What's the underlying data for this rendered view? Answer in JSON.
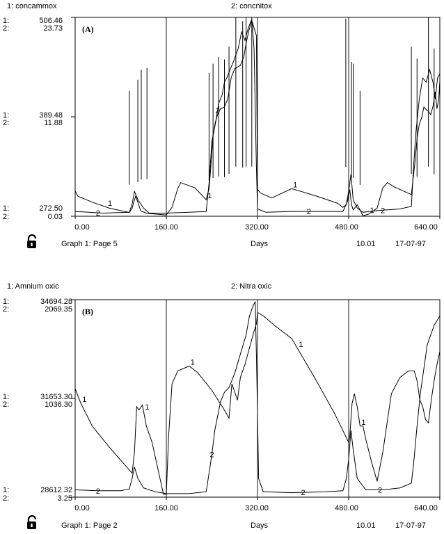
{
  "chart_data": [
    {
      "panel": "(A)",
      "type": "line",
      "series": [
        {
          "number": "1",
          "name": "concammox"
        },
        {
          "number": "2",
          "name": "concnitox"
        }
      ],
      "y1_ticks": [
        "506.46",
        "389.48",
        "272.50"
      ],
      "y2_ticks": [
        "23.73",
        "11.88",
        "0.03"
      ],
      "ylim_1": [
        272.5,
        506.46
      ],
      "ylim_2": [
        0.03,
        23.73
      ],
      "x_ticks": [
        "0.00",
        "160.00",
        "320.00",
        "480.00",
        "640.00"
      ],
      "xlim": [
        0,
        640
      ],
      "xlabel": "Days",
      "footer_left": "Graph 1: Page 5",
      "footer_time": "10.01",
      "footer_date": "17-07-97",
      "series1_points": [
        [
          0,
          302
        ],
        [
          5,
          296
        ],
        [
          30,
          289
        ],
        [
          60,
          282
        ],
        [
          95,
          277
        ],
        [
          100,
          282
        ],
        [
          103,
          289
        ],
        [
          106,
          296
        ],
        [
          110,
          289
        ],
        [
          115,
          279
        ],
        [
          125,
          276
        ],
        [
          160,
          274
        ],
        [
          170,
          283
        ],
        [
          180,
          305
        ],
        [
          185,
          312
        ],
        [
          210,
          306
        ],
        [
          230,
          292
        ],
        [
          235,
          305
        ],
        [
          238,
          330
        ],
        [
          242,
          367
        ],
        [
          246,
          383
        ],
        [
          250,
          392
        ],
        [
          255,
          399
        ],
        [
          262,
          401
        ],
        [
          268,
          411
        ],
        [
          274,
          436
        ],
        [
          280,
          446
        ],
        [
          290,
          450
        ],
        [
          296,
          460
        ],
        [
          300,
          476
        ],
        [
          305,
          491
        ],
        [
          310,
          503
        ],
        [
          318,
          485
        ],
        [
          320,
          304
        ],
        [
          325,
          300
        ],
        [
          345,
          294
        ],
        [
          380,
          305
        ],
        [
          420,
          297
        ],
        [
          460,
          288
        ],
        [
          470,
          283
        ],
        [
          474,
          285
        ],
        [
          478,
          290
        ],
        [
          482,
          304
        ],
        [
          485,
          286
        ],
        [
          488,
          280
        ],
        [
          495,
          286
        ],
        [
          500,
          280
        ],
        [
          505,
          273
        ],
        [
          515,
          275
        ],
        [
          530,
          282
        ],
        [
          540,
          306
        ],
        [
          548,
          312
        ],
        [
          560,
          307
        ],
        [
          580,
          301
        ],
        [
          590,
          298
        ],
        [
          592,
          310
        ],
        [
          596,
          334
        ],
        [
          600,
          364
        ],
        [
          604,
          381
        ],
        [
          608,
          388
        ],
        [
          612,
          401
        ],
        [
          616,
          398
        ],
        [
          620,
          396
        ],
        [
          624,
          392
        ],
        [
          628,
          402
        ],
        [
          632,
          419
        ],
        [
          635,
          399
        ],
        [
          638,
          410
        ],
        [
          640,
          432
        ]
      ],
      "series1_pulses": [
        [
          95,
          420
        ],
        [
          110,
          433
        ],
        [
          116,
          445
        ],
        [
          126,
          447
        ],
        [
          235,
          441
        ],
        [
          242,
          452
        ],
        [
          252,
          460
        ],
        [
          262,
          457
        ],
        [
          270,
          472
        ],
        [
          282,
          506
        ],
        [
          294,
          502
        ],
        [
          300,
          506
        ],
        [
          310,
          506
        ],
        [
          475,
          505
        ],
        [
          485,
          454
        ],
        [
          488,
          452
        ],
        [
          500,
          420
        ],
        [
          590,
          472
        ],
        [
          600,
          458
        ],
        [
          620,
          506
        ],
        [
          630,
          470
        ]
      ],
      "series2_points": [
        [
          0,
          0.6
        ],
        [
          50,
          0.4
        ],
        [
          95,
          0.5
        ],
        [
          100,
          1.5
        ],
        [
          104,
          3.0
        ],
        [
          110,
          2.0
        ],
        [
          120,
          1.0
        ],
        [
          130,
          0.4
        ],
        [
          160,
          0.4
        ],
        [
          200,
          0.5
        ],
        [
          230,
          0.6
        ],
        [
          235,
          4.0
        ],
        [
          240,
          9.0
        ],
        [
          246,
          11.0
        ],
        [
          252,
          13.5
        ],
        [
          258,
          14.5
        ],
        [
          262,
          16.0
        ],
        [
          266,
          16.5
        ],
        [
          272,
          17.5
        ],
        [
          278,
          18.5
        ],
        [
          286,
          20.0
        ],
        [
          292,
          22.0
        ],
        [
          298,
          21.0
        ],
        [
          304,
          22.5
        ],
        [
          310,
          23.5
        ],
        [
          314,
          20.0
        ],
        [
          318,
          6.0
        ],
        [
          320,
          0.9
        ],
        [
          335,
          0.5
        ],
        [
          380,
          0.6
        ],
        [
          440,
          0.6
        ],
        [
          470,
          0.6
        ],
        [
          476,
          1.5
        ],
        [
          480,
          3.0
        ],
        [
          484,
          5.0
        ],
        [
          488,
          2.0
        ],
        [
          495,
          1.0
        ],
        [
          505,
          0.5
        ],
        [
          530,
          0.7
        ],
        [
          570,
          0.9
        ],
        [
          590,
          1.2
        ],
        [
          594,
          6.0
        ],
        [
          598,
          10.0
        ],
        [
          604,
          14.0
        ],
        [
          610,
          16.5
        ],
        [
          616,
          16.0
        ],
        [
          622,
          17.5
        ],
        [
          628,
          16.0
        ],
        [
          632,
          14.0
        ],
        [
          636,
          16.5
        ],
        [
          640,
          17.0
        ]
      ]
    },
    {
      "panel": "(B)",
      "type": "line",
      "series": [
        {
          "number": "1",
          "name": "Amnium oxic"
        },
        {
          "number": "2",
          "name": "Nitra oxic"
        }
      ],
      "y1_ticks": [
        "34694.28",
        "31653.30",
        "28612.32"
      ],
      "y2_ticks": [
        "2069.35",
        "1036.30",
        "3.25"
      ],
      "ylim_1": [
        28612.32,
        34694.28
      ],
      "ylim_2": [
        3.25,
        2069.35
      ],
      "x_ticks": [
        "0.00",
        "160.00",
        "320.00",
        "480.00",
        "640.00"
      ],
      "xlim": [
        0,
        640
      ],
      "xlabel": "Days",
      "footer_left": "Graph 1: Page 2",
      "footer_time": "10.01",
      "footer_date": "17-07-97",
      "series1_points": [
        [
          0,
          31950
        ],
        [
          10,
          31500
        ],
        [
          30,
          30800
        ],
        [
          60,
          30150
        ],
        [
          90,
          29550
        ],
        [
          100,
          29350
        ],
        [
          104,
          30000
        ],
        [
          108,
          31400
        ],
        [
          112,
          31300
        ],
        [
          118,
          31450
        ],
        [
          125,
          30800
        ],
        [
          135,
          30300
        ],
        [
          155,
          28700
        ],
        [
          160,
          28700
        ],
        [
          164,
          30500
        ],
        [
          170,
          32100
        ],
        [
          180,
          32500
        ],
        [
          200,
          32650
        ],
        [
          215,
          32450
        ],
        [
          240,
          31900
        ],
        [
          260,
          31350
        ],
        [
          270,
          31050
        ],
        [
          275,
          32100
        ],
        [
          285,
          31600
        ],
        [
          290,
          32300
        ],
        [
          298,
          32700
        ],
        [
          305,
          33150
        ],
        [
          312,
          33600
        ],
        [
          318,
          33950
        ],
        [
          320,
          34300
        ],
        [
          330,
          34200
        ],
        [
          350,
          33900
        ],
        [
          380,
          33500
        ],
        [
          420,
          32300
        ],
        [
          455,
          31200
        ],
        [
          480,
          30300
        ],
        [
          482,
          30500
        ],
        [
          486,
          31500
        ],
        [
          490,
          31800
        ],
        [
          495,
          31400
        ],
        [
          500,
          30800
        ],
        [
          505,
          30800
        ],
        [
          510,
          30400
        ],
        [
          520,
          29700
        ],
        [
          530,
          29100
        ],
        [
          540,
          30000
        ],
        [
          555,
          31800
        ],
        [
          570,
          32300
        ],
        [
          585,
          32500
        ],
        [
          595,
          32500
        ],
        [
          600,
          32200
        ],
        [
          605,
          31600
        ],
        [
          610,
          31400
        ],
        [
          615,
          31000
        ],
        [
          620,
          30900
        ],
        [
          625,
          31600
        ],
        [
          630,
          32200
        ],
        [
          635,
          32700
        ],
        [
          640,
          33100
        ]
      ],
      "series2_points": [
        [
          0,
          80
        ],
        [
          40,
          70
        ],
        [
          80,
          70
        ],
        [
          95,
          90
        ],
        [
          100,
          200
        ],
        [
          104,
          320
        ],
        [
          110,
          200
        ],
        [
          120,
          100
        ],
        [
          140,
          60
        ],
        [
          160,
          40
        ],
        [
          200,
          40
        ],
        [
          230,
          60
        ],
        [
          240,
          450
        ],
        [
          245,
          700
        ],
        [
          250,
          850
        ],
        [
          255,
          1000
        ],
        [
          262,
          1100
        ],
        [
          270,
          1150
        ],
        [
          280,
          1300
        ],
        [
          290,
          1500
        ],
        [
          300,
          1700
        ],
        [
          306,
          1900
        ],
        [
          312,
          2000
        ],
        [
          316,
          2050
        ],
        [
          318,
          1500
        ],
        [
          320,
          900
        ],
        [
          322,
          200
        ],
        [
          330,
          60
        ],
        [
          380,
          50
        ],
        [
          440,
          60
        ],
        [
          470,
          70
        ],
        [
          476,
          200
        ],
        [
          480,
          400
        ],
        [
          484,
          700
        ],
        [
          488,
          500
        ],
        [
          495,
          200
        ],
        [
          510,
          80
        ],
        [
          540,
          80
        ],
        [
          570,
          100
        ],
        [
          590,
          150
        ],
        [
          594,
          350
        ],
        [
          600,
          750
        ],
        [
          606,
          1100
        ],
        [
          612,
          1350
        ],
        [
          618,
          1600
        ],
        [
          624,
          1700
        ],
        [
          630,
          1800
        ],
        [
          635,
          1850
        ],
        [
          640,
          1900
        ]
      ]
    }
  ]
}
